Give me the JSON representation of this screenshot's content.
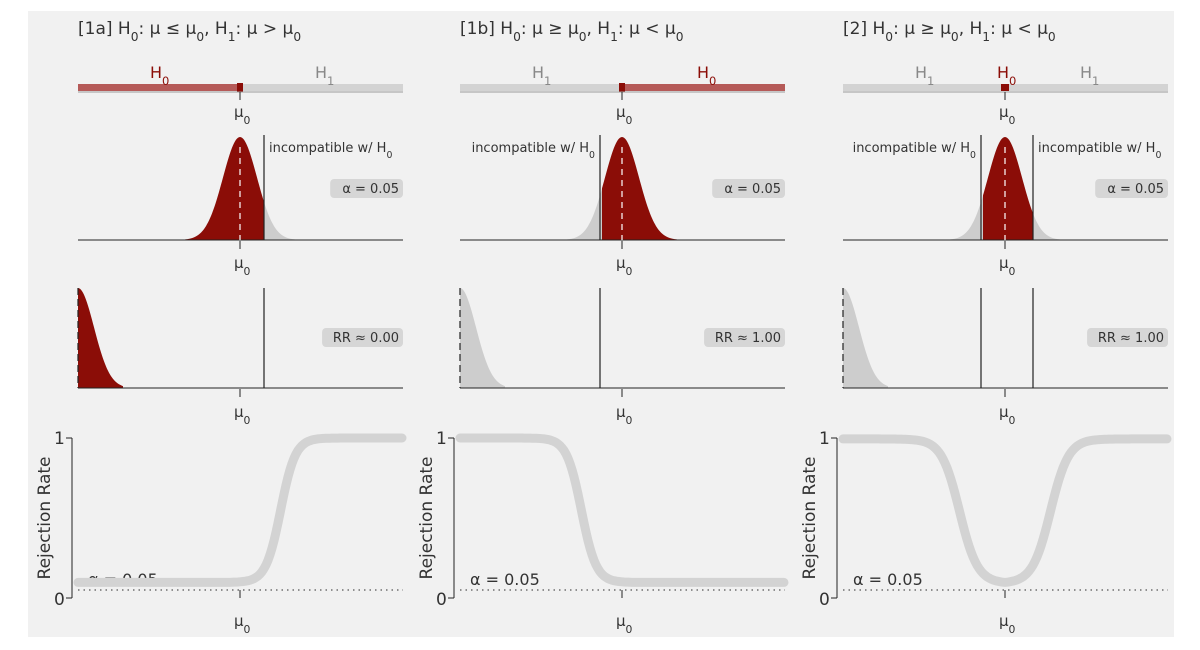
{
  "colors": {
    "accent": "#8b0d07",
    "accent_light": "#b55a58",
    "gray_fill": "#cdcdcd",
    "gray_curve": "#d3d3d3",
    "badge": "#d6d6d6",
    "line": "#222222"
  },
  "symbols": {
    "mu0": "μ0",
    "H0": "H0",
    "H1": "H1"
  },
  "panels": [
    {
      "id": "1a",
      "title": "[1a]  H0: μ ≤ μ0,  H1: μ > μ0",
      "bar_labels": [
        "H0",
        "H1"
      ],
      "incompatible_labels": [
        "incompatible w/ H0"
      ],
      "alpha_label": "α = 0.05",
      "rr_label": "RR ≈ 0.00",
      "curve_alpha_label": "α = 0.05",
      "y_axis_label": "Rejection Rate",
      "y_ticks": [
        "1",
        "0"
      ]
    },
    {
      "id": "1b",
      "title": "[1b]  H0: μ ≥ μ0,  H1: μ < μ0",
      "bar_labels": [
        "H1",
        "H0"
      ],
      "incompatible_labels": [
        "incompatible w/ H0"
      ],
      "alpha_label": "α = 0.05",
      "rr_label": "RR ≈ 1.00",
      "curve_alpha_label": "α = 0.05",
      "y_axis_label": "Rejection Rate",
      "y_ticks": [
        "1",
        "0"
      ]
    },
    {
      "id": "2",
      "title": "[2]  H0: μ ≥ μ0,  H1: μ < μ0",
      "bar_labels": [
        "H1",
        "H0",
        "H1"
      ],
      "incompatible_labels": [
        "incompatible w/ H0",
        "incompatible w/ H0"
      ],
      "alpha_label": "α = 0.05",
      "rr_label": "RR ≈ 1.00",
      "curve_alpha_label": "α = 0.05",
      "y_axis_label": "Rejection Rate",
      "y_ticks": [
        "1",
        "0"
      ]
    }
  ],
  "chart_data": [
    {
      "type": "line",
      "panel": "1a",
      "ylabel": "Rejection Rate",
      "ylim": [
        0,
        1
      ],
      "alpha": 0.05,
      "x_relative_to_mu0": [
        -1,
        0,
        0.15,
        0.3,
        0.45,
        0.6,
        1
      ],
      "y": [
        0.0,
        0.05,
        0.3,
        0.7,
        0.95,
        1.0,
        1.0
      ]
    },
    {
      "type": "line",
      "panel": "1b",
      "ylabel": "Rejection Rate",
      "ylim": [
        0,
        1
      ],
      "alpha": 0.05,
      "x_relative_to_mu0": [
        -1,
        -0.6,
        -0.45,
        -0.3,
        -0.15,
        0,
        1
      ],
      "y": [
        1.0,
        1.0,
        0.95,
        0.7,
        0.3,
        0.05,
        0.0
      ]
    },
    {
      "type": "line",
      "panel": "2",
      "ylabel": "Rejection Rate",
      "ylim": [
        0,
        1
      ],
      "alpha": 0.05,
      "x_relative_to_mu0": [
        -1,
        -0.5,
        -0.25,
        0,
        0.25,
        0.5,
        1
      ],
      "y": [
        1.0,
        1.0,
        0.5,
        0.05,
        0.5,
        1.0,
        1.0
      ]
    }
  ]
}
